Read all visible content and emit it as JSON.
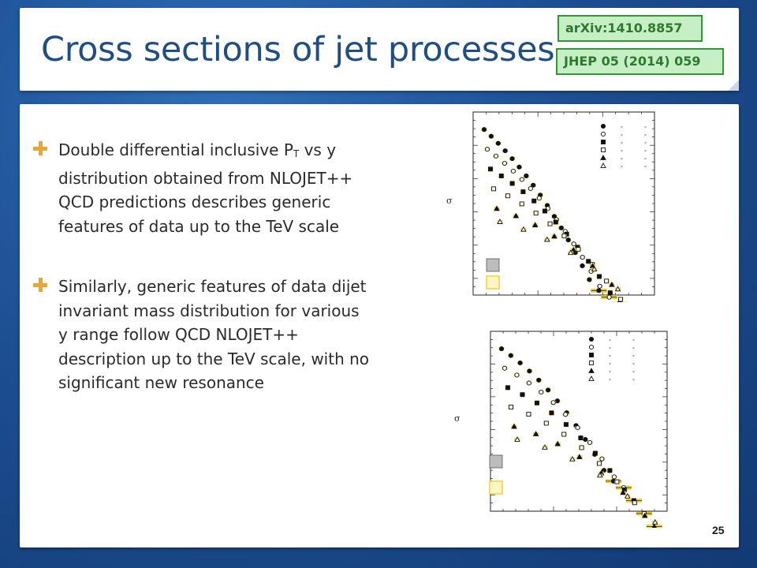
{
  "slide": {
    "title": "Cross sections of jet processes",
    "references": {
      "arxiv": "arXiv:1410.8857",
      "journal": "JHEP 05 (2014) 059"
    },
    "bullets": [
      {
        "pre": "Double differential inclusive P",
        "sub": "T",
        "post": " vs y distribution obtained from NLOJET++ QCD predictions describes generic features of data up to the TeV scale"
      },
      {
        "text": "Similarly, generic features of data dijet invariant mass distribution for various y range follow QCD NLOJET++ description up to the TeV scale, with no significant new resonance"
      }
    ],
    "page_number": "25"
  },
  "colors": {
    "background": "#1d4f93",
    "title": "#1f4f82",
    "bullet_icon": "#e8a735",
    "ref_badge_fill": "#c6efc6",
    "ref_badge_text": "#2c7a2c",
    "band": "#f2d13a"
  },
  "icons": [
    "plus-bullet-icon"
  ],
  "chart_data": [
    {
      "type": "scatter",
      "ylabel": "σ",
      "series": [
        {
          "marker": "filled-circle",
          "values": [
            1.0,
            0.96,
            0.92,
            0.88,
            0.84,
            0.8,
            0.76,
            0.72,
            0.68,
            0.64,
            0.6,
            0.56,
            0.52,
            0.48,
            0.44,
            0.4
          ]
        },
        {
          "marker": "open-circle",
          "values": [
            0.88,
            0.84,
            0.8,
            0.76,
            0.72,
            0.68,
            0.64,
            0.6,
            0.56,
            0.52,
            0.48,
            0.44,
            0.4,
            0.36
          ]
        },
        {
          "marker": "filled-square",
          "values": [
            0.76,
            0.72,
            0.68,
            0.64,
            0.6,
            0.56,
            0.52,
            0.48,
            0.44,
            0.4,
            0.36,
            0.32
          ]
        },
        {
          "marker": "open-square",
          "values": [
            0.64,
            0.6,
            0.56,
            0.52,
            0.48,
            0.44,
            0.4,
            0.36,
            0.32,
            0.28
          ]
        },
        {
          "marker": "filled-triangle",
          "values": [
            0.52,
            0.48,
            0.44,
            0.4,
            0.36,
            0.32,
            0.28,
            0.24
          ]
        },
        {
          "marker": "open-triangle",
          "values": [
            0.44,
            0.4,
            0.36,
            0.32,
            0.28,
            0.24,
            0.2
          ]
        }
      ]
    },
    {
      "type": "scatter",
      "ylabel": "σ",
      "series": [
        {
          "marker": "filled-circle",
          "values": [
            1.0,
            0.96,
            0.92,
            0.88,
            0.84,
            0.8,
            0.76,
            0.72,
            0.68,
            0.64,
            0.6,
            0.56
          ]
        },
        {
          "marker": "open-circle",
          "values": [
            0.88,
            0.84,
            0.8,
            0.76,
            0.72,
            0.68,
            0.64,
            0.6,
            0.56,
            0.52
          ]
        },
        {
          "marker": "filled-square",
          "values": [
            0.76,
            0.72,
            0.68,
            0.64,
            0.6,
            0.56,
            0.52,
            0.48,
            0.44
          ]
        },
        {
          "marker": "open-square",
          "values": [
            0.64,
            0.6,
            0.56,
            0.52,
            0.48,
            0.44,
            0.4,
            0.36
          ]
        },
        {
          "marker": "filled-triangle",
          "values": [
            0.52,
            0.48,
            0.44,
            0.4,
            0.36,
            0.32,
            0.28
          ]
        },
        {
          "marker": "open-triangle",
          "values": [
            0.44,
            0.4,
            0.36,
            0.32,
            0.28,
            0.24
          ]
        }
      ]
    }
  ]
}
